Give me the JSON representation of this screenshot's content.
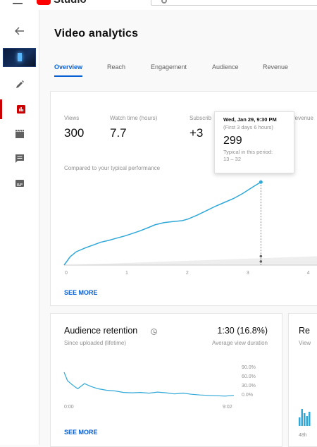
{
  "app": {
    "brand": "Studio"
  },
  "page": {
    "title": "Video analytics"
  },
  "tabs": [
    {
      "label": "Overview"
    },
    {
      "label": "Reach"
    },
    {
      "label": "Engagement"
    },
    {
      "label": "Audience"
    },
    {
      "label": "Revenue"
    }
  ],
  "metrics": [
    {
      "label": "Views",
      "value": "300"
    },
    {
      "label": "Watch time (hours)",
      "value": "7.7"
    },
    {
      "label": "Subscrib",
      "value": "+3"
    },
    {
      "label": "revenue",
      "value": ""
    }
  ],
  "tooltip": {
    "date": "Wed, Jan 29, 9:30 PM",
    "sub": "(First 3 days 6 hours)",
    "value": "299",
    "typical_label": "Typical in this period:",
    "typical_range": "13 – 32"
  },
  "compare_text": "Compared to your typical performance",
  "see_more": "SEE MORE",
  "chart_data": [
    {
      "type": "line",
      "title": "",
      "xlabel": "",
      "ylabel": "",
      "x_ticks": [
        "0",
        "1",
        "2",
        "3",
        "4"
      ],
      "series": [
        {
          "name": "Views",
          "x": [
            0,
            0.1,
            0.2,
            0.35,
            0.5,
            0.6,
            0.75,
            0.85,
            1.0,
            1.1,
            1.25,
            1.4,
            1.5,
            1.65,
            1.8,
            1.95,
            2.05,
            2.2,
            2.35,
            2.5,
            2.65,
            2.8,
            2.95,
            3.05,
            3.15,
            3.25
          ],
          "values": [
            0,
            30,
            48,
            62,
            74,
            82,
            90,
            96,
            105,
            112,
            123,
            136,
            145,
            153,
            157,
            160,
            166,
            180,
            196,
            212,
            226,
            240,
            258,
            272,
            286,
            299
          ]
        }
      ],
      "typical_band": {
        "low": 13,
        "high": 32
      },
      "ylim": [
        0,
        320
      ],
      "xlim": [
        0,
        4.2
      ]
    },
    {
      "type": "line",
      "title": "Audience retention",
      "subtitle": "Since uploaded (lifetime)",
      "headline_value": "1:30 (16.8%)",
      "headline_label": "Average view duration",
      "x_ticks": [
        "0:00",
        "9:02"
      ],
      "y_ticks": [
        "90.0%",
        "60.0%",
        "30.0%",
        "0.0%"
      ],
      "series": [
        {
          "name": "Retention",
          "x": [
            0,
            0.02,
            0.05,
            0.08,
            0.12,
            0.16,
            0.2,
            0.25,
            0.3,
            0.35,
            0.4,
            0.45,
            0.5,
            0.55,
            0.6,
            0.65,
            0.7,
            0.75,
            0.8,
            0.85,
            0.9,
            0.95,
            1.0
          ],
          "values": [
            75,
            52,
            40,
            30,
            44,
            36,
            30,
            26,
            24,
            20,
            19,
            20,
            18,
            21,
            19,
            16,
            18,
            15,
            13,
            12,
            11,
            10,
            12
          ]
        }
      ],
      "ylim": [
        0,
        100
      ]
    }
  ],
  "retention": {
    "title": "Audience retention",
    "subtitle": "Since uploaded (lifetime)",
    "value": "1:30 (16.8%)",
    "value_label": "Average view duration",
    "x_start": "0:00",
    "x_end": "9:02",
    "y_ticks": [
      "90.0%",
      "60.0%",
      "30.0%",
      "0.0%"
    ]
  },
  "realtime": {
    "title": "Re",
    "sub": "View",
    "foot": "48h"
  },
  "colors": {
    "accent": "#065fd4",
    "line": "#2fa8d8",
    "active": "#cc0000"
  }
}
